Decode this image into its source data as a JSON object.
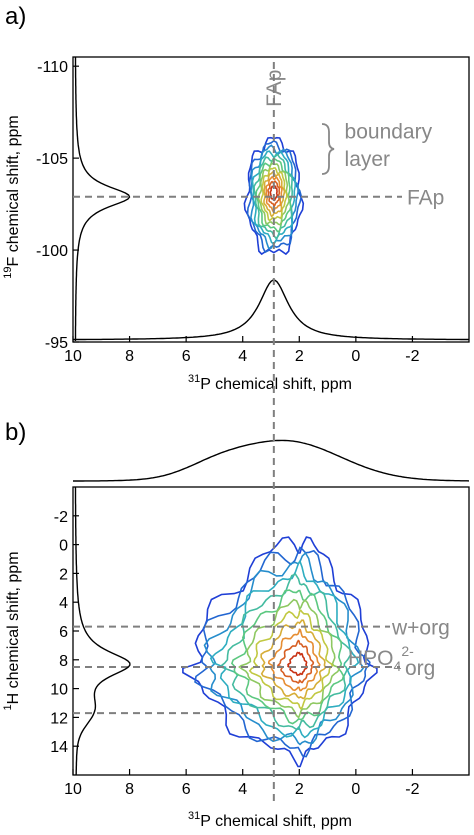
{
  "chart_data": [
    {
      "panel": "a)",
      "type": "contour",
      "xlabel": "31P chemical shift, ppm",
      "ylabel": "19F chemical shift, ppm",
      "xlim": [
        10,
        -4
      ],
      "ylim": [
        -110.5,
        -95
      ],
      "x_ticks": [
        "10",
        "8",
        "6",
        "4",
        "2",
        "0",
        "-2"
      ],
      "x_tick_values": [
        10,
        8,
        6,
        4,
        2,
        0,
        -2
      ],
      "y_ticks": [
        "-110",
        "-105",
        "-100",
        "-95"
      ],
      "y_tick_values": [
        -110,
        -105,
        -100,
        -95
      ],
      "dashed_lines": {
        "x": 2.9,
        "y": -102.9
      },
      "peak": {
        "x": 2.9,
        "y": -102.9,
        "x_halfwidth": 0.9,
        "y_halfwidth": 1.6
      },
      "contour_levels": 12,
      "top_projection_peak": {
        "x": 2.9,
        "height": 0.3
      },
      "side_projection_peak": {
        "y": -102.9,
        "height": 0.75
      },
      "annotations": [
        {
          "label": "FAp",
          "x": 2.9,
          "y": -108.8,
          "orientation": "vertical"
        },
        {
          "label": "boundary",
          "x": 0.4,
          "y": -106.5
        },
        {
          "label": "layer",
          "x": 0.4,
          "y": -105.0
        },
        {
          "label": "FAp",
          "x": -2.5,
          "y": -102.9
        }
      ]
    },
    {
      "panel": "b)",
      "type": "contour",
      "xlabel": "31P chemical shift, ppm",
      "ylabel": "1H chemical shift, ppm",
      "xlim": [
        10,
        -4
      ],
      "ylim": [
        -4,
        16
      ],
      "x_ticks": [
        "10",
        "8",
        "6",
        "4",
        "2",
        "0",
        "-2"
      ],
      "x_tick_values": [
        10,
        8,
        6,
        4,
        2,
        0,
        -2
      ],
      "y_ticks": [
        "-2",
        "0",
        "2",
        "4",
        "6",
        "8",
        "10",
        "12",
        "14"
      ],
      "y_tick_values": [
        -2,
        0,
        2,
        4,
        6,
        8,
        10,
        12,
        14
      ],
      "dashed_lines": {
        "x": 2.9,
        "y": [
          5.7,
          8.5,
          11.7
        ]
      },
      "peak": {
        "x": 2.0,
        "y": 8.4
      },
      "contour_levels": 12,
      "top_projection_peak": {
        "x": 2.5
      },
      "side_projection_peaks": [
        {
          "y": 8.3
        },
        {
          "y": 11.5
        }
      ],
      "annotations": [
        {
          "label": "w+org",
          "x": -1.7,
          "y": 5.7
        },
        {
          "label": "org",
          "x": -1.7,
          "y": 8.5
        },
        {
          "label": "HPO",
          "x": -1.7,
          "y": 11.7
        }
      ]
    }
  ],
  "labels": {
    "panel_a": "a)",
    "panel_b": "b)",
    "x_sup": "31",
    "x_rest": "P chemical shift, ppm",
    "ya_sup": "19",
    "ya_rest": "F chemical shift, ppm",
    "yb_sup": "1",
    "yb_rest": "H chemical shift, ppm",
    "hpo_base": "HPO",
    "hpo_sub": "4",
    "hpo_sup": "2-"
  },
  "colors": {
    "contour_low": "#1f3fd6",
    "contour_high": "#c83214",
    "dashed": "#7f7f7f",
    "annotation": "#888888"
  }
}
